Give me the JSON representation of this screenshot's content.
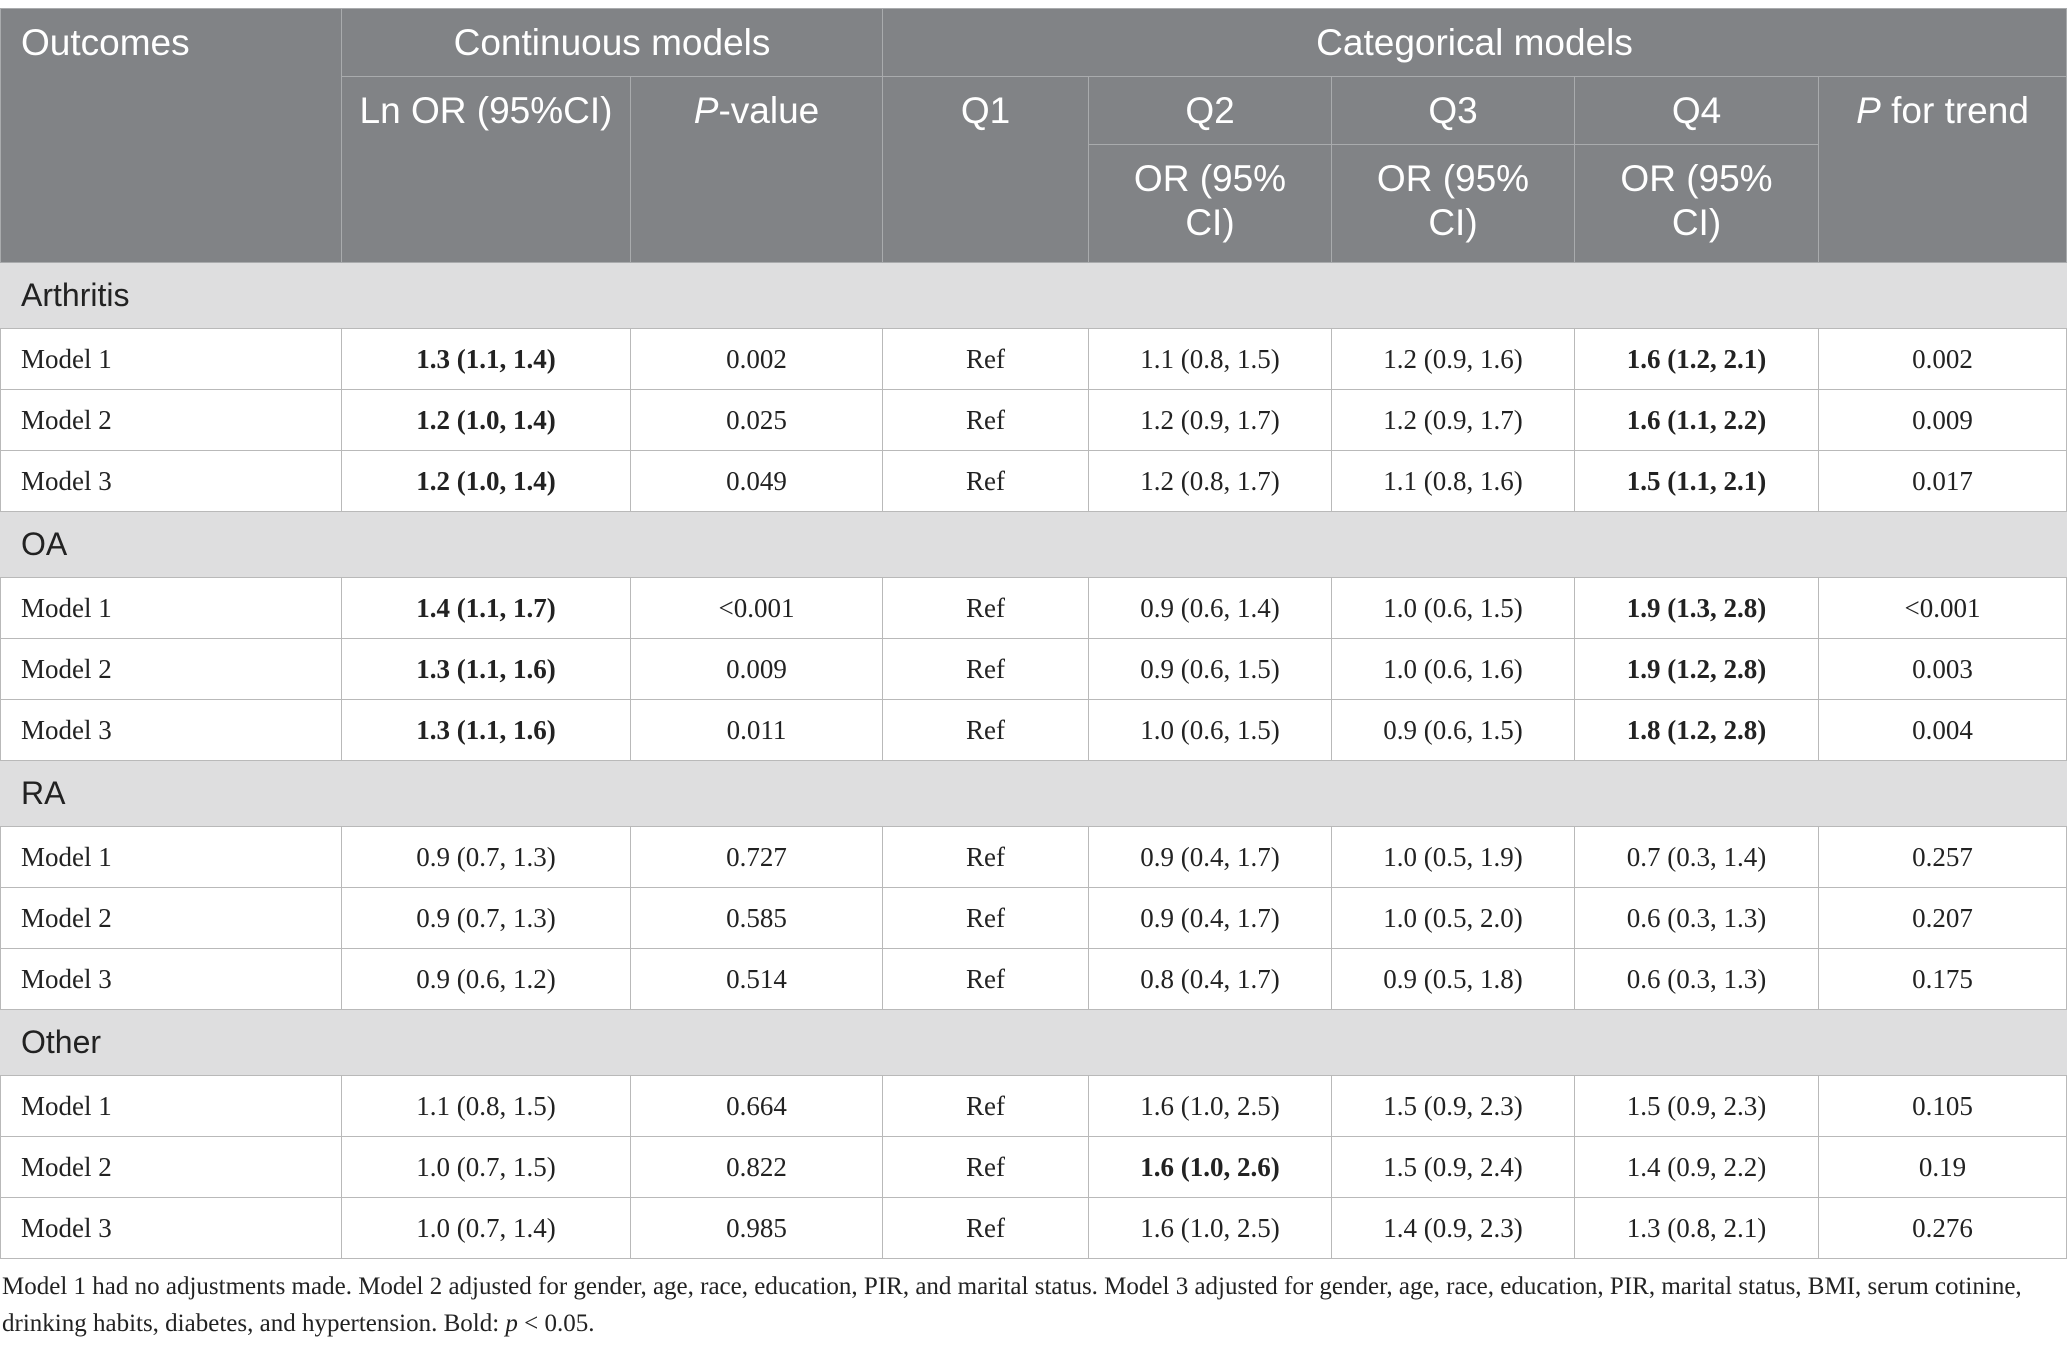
{
  "header": {
    "outcomes": "Outcomes",
    "continuous_models": "Continuous models",
    "categorical_models": "Categorical models",
    "ln_or": "Ln OR (95%CI)",
    "p_value_italic": "P",
    "p_value_rest": "-value",
    "q1": "Q1",
    "q2": "Q2",
    "q3": "Q3",
    "q4": "Q4",
    "p_trend_italic": "P",
    "p_trend_rest": " for trend",
    "or_line1": "OR (95%",
    "or_line2": "CI)"
  },
  "groups": [
    {
      "name": "Arthritis",
      "rows": [
        {
          "label": "Model 1",
          "ln_or": "1.3 (1.1, 1.4)",
          "p": "0.002",
          "q1": "Ref",
          "q2": "1.1 (0.8, 1.5)",
          "q3": "1.2 (0.9, 1.6)",
          "q4": "1.6 (1.2, 2.1)",
          "trend": "0.002"
        },
        {
          "label": "Model 2",
          "ln_or": "1.2 (1.0, 1.4)",
          "p": "0.025",
          "q1": "Ref",
          "q2": "1.2 (0.9, 1.7)",
          "q3": "1.2 (0.9, 1.7)",
          "q4": "1.6 (1.1, 2.2)",
          "trend": "0.009"
        },
        {
          "label": "Model 3",
          "ln_or": "1.2 (1.0, 1.4)",
          "p": "0.049",
          "q1": "Ref",
          "q2": "1.2 (0.8, 1.7)",
          "q3": "1.1 (0.8, 1.6)",
          "q4": "1.5 (1.1, 2.1)",
          "trend": "0.017"
        }
      ]
    },
    {
      "name": "OA",
      "rows": [
        {
          "label": "Model 1",
          "ln_or": "1.4 (1.1, 1.7)",
          "p": "<0.001",
          "q1": "Ref",
          "q2": "0.9 (0.6, 1.4)",
          "q3": "1.0 (0.6, 1.5)",
          "q4": "1.9 (1.3, 2.8)",
          "trend": "<0.001"
        },
        {
          "label": "Model 2",
          "ln_or": "1.3 (1.1, 1.6)",
          "p": "0.009",
          "q1": "Ref",
          "q2": "0.9 (0.6, 1.5)",
          "q3": "1.0 (0.6, 1.6)",
          "q4": "1.9 (1.2, 2.8)",
          "trend": "0.003"
        },
        {
          "label": "Model 3",
          "ln_or": "1.3 (1.1, 1.6)",
          "p": "0.011",
          "q1": "Ref",
          "q2": "1.0 (0.6, 1.5)",
          "q3": "0.9 (0.6, 1.5)",
          "q4": "1.8 (1.2, 2.8)",
          "trend": "0.004"
        }
      ]
    },
    {
      "name": "RA",
      "rows": [
        {
          "label": "Model 1",
          "ln_or": "0.9 (0.7, 1.3)",
          "p": "0.727",
          "q1": "Ref",
          "q2": "0.9 (0.4, 1.7)",
          "q3": "1.0 (0.5, 1.9)",
          "q4": "0.7 (0.3, 1.4)",
          "trend": "0.257"
        },
        {
          "label": "Model 2",
          "ln_or": "0.9 (0.7, 1.3)",
          "p": "0.585",
          "q1": "Ref",
          "q2": "0.9 (0.4, 1.7)",
          "q3": "1.0 (0.5, 2.0)",
          "q4": "0.6 (0.3, 1.3)",
          "trend": "0.207"
        },
        {
          "label": "Model 3",
          "ln_or": "0.9 (0.6, 1.2)",
          "p": "0.514",
          "q1": "Ref",
          "q2": "0.8 (0.4, 1.7)",
          "q3": "0.9 (0.5, 1.8)",
          "q4": "0.6 (0.3, 1.3)",
          "trend": "0.175"
        }
      ]
    },
    {
      "name": "Other",
      "rows": [
        {
          "label": "Model 1",
          "ln_or": "1.1 (0.8, 1.5)",
          "p": "0.664",
          "q1": "Ref",
          "q2": "1.6 (1.0, 2.5)",
          "q3": "1.5 (0.9, 2.3)",
          "q4": "1.5 (0.9, 2.3)",
          "trend": "0.105"
        },
        {
          "label": "Model 2",
          "ln_or": "1.0 (0.7, 1.5)",
          "p": "0.822",
          "q1": "Ref",
          "q2": "1.6 (1.0, 2.6)",
          "q3": "1.5 (0.9, 2.4)",
          "q4": "1.4 (0.9, 2.2)",
          "trend": "0.19"
        },
        {
          "label": "Model 3",
          "ln_or": "1.0 (0.7, 1.4)",
          "p": "0.985",
          "q1": "Ref",
          "q2": "1.6 (1.0, 2.5)",
          "q3": "1.4 (0.9, 2.3)",
          "q4": "1.3 (0.8, 2.1)",
          "trend": "0.276"
        }
      ]
    }
  ],
  "footnote": {
    "text_main": "Model 1 had no adjustments made. Model 2 adjusted for gender, age, race, education, PIR, and marital status. Model 3 adjusted for gender, age, race, education, PIR, marital status, BMI, serum cotinine, drinking habits, diabetes, and hypertension. Bold: ",
    "p_symbol": "p",
    "text_end": " < 0.05."
  }
}
